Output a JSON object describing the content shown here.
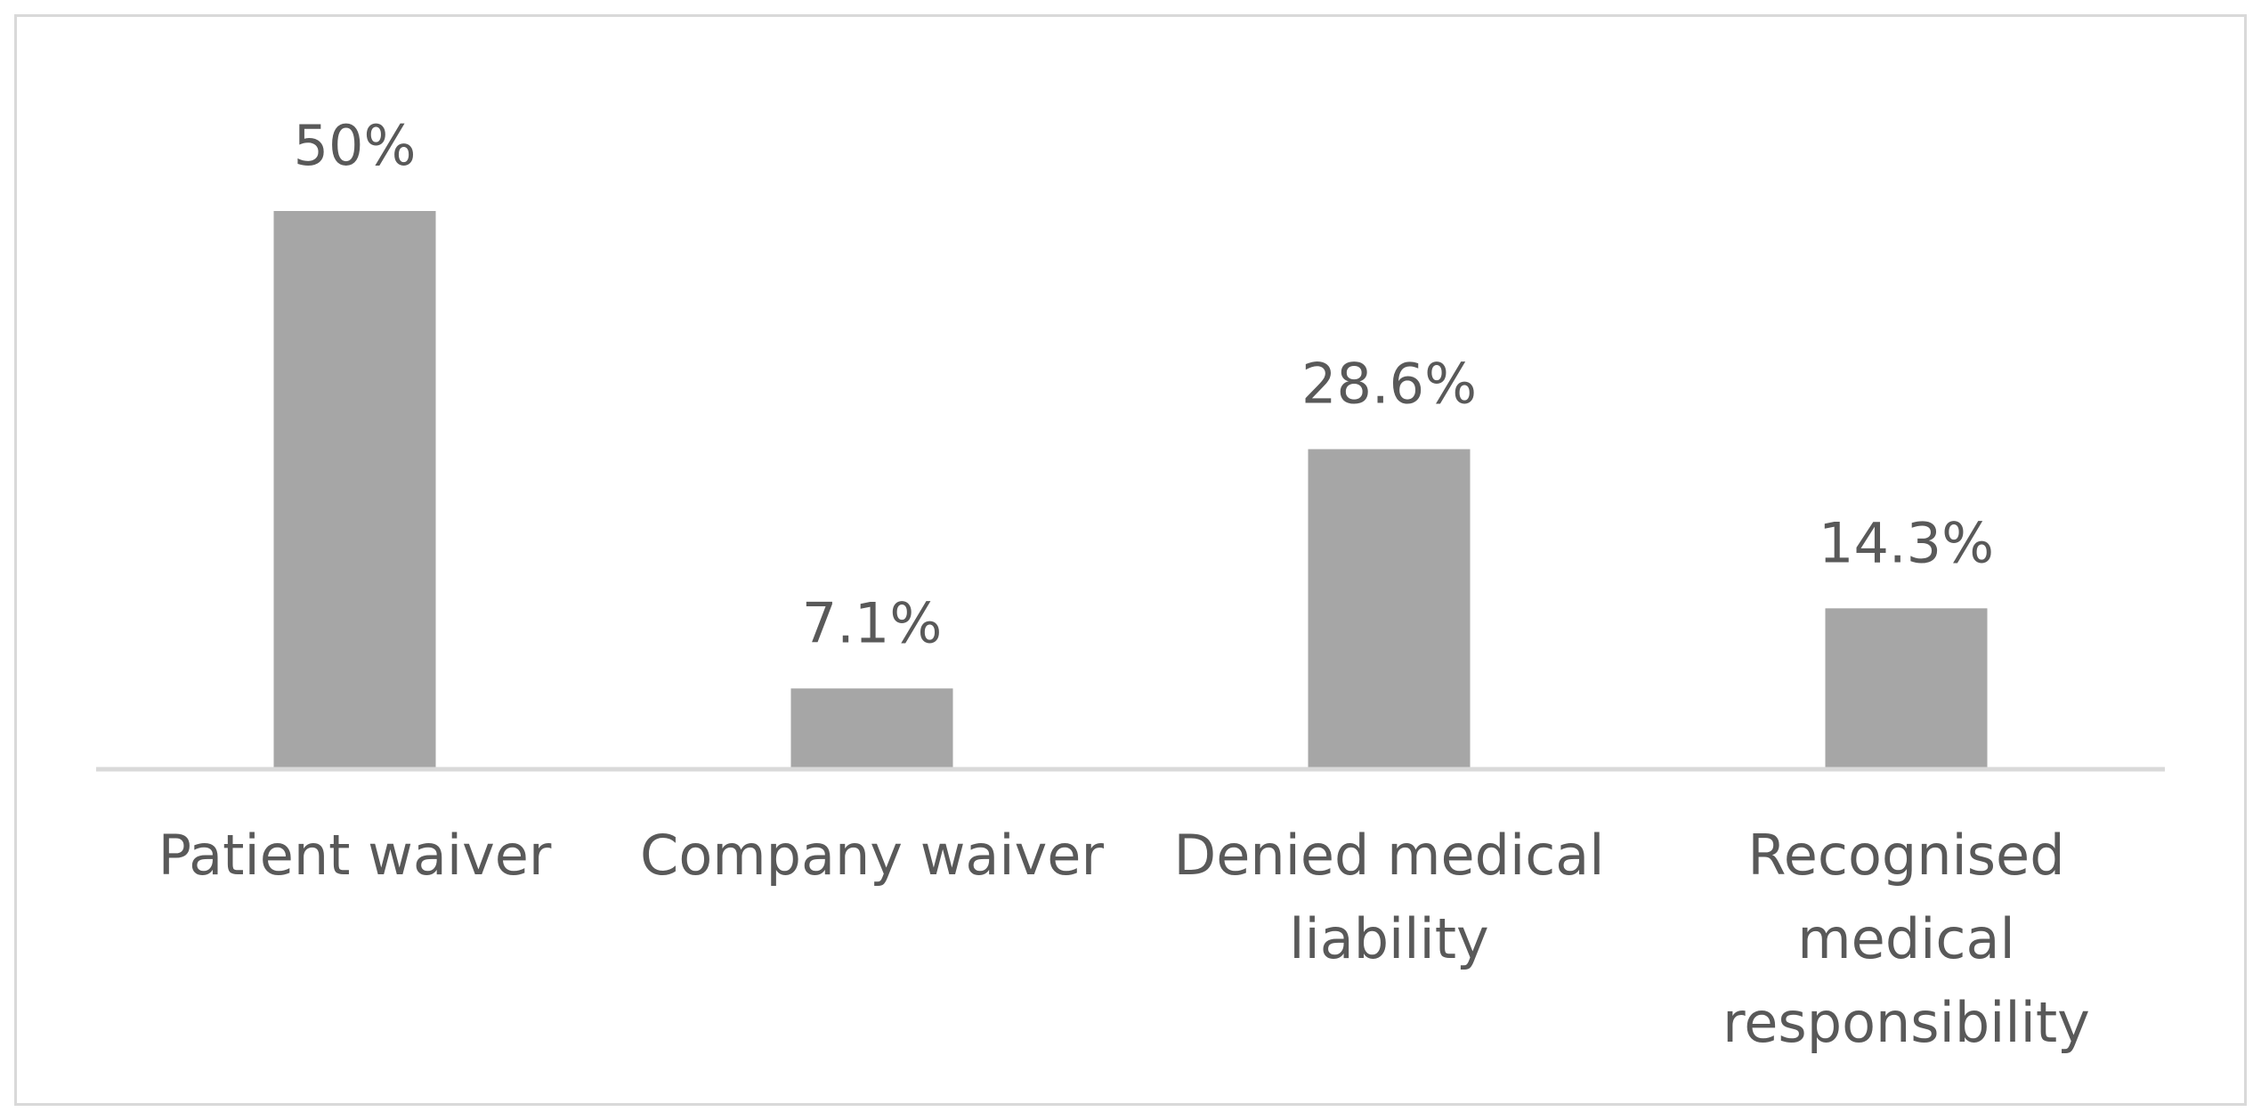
{
  "chart_data": {
    "type": "bar",
    "title": "",
    "xlabel": "",
    "ylabel": "",
    "categories": [
      [
        "Patient waiver"
      ],
      [
        "Company waiver"
      ],
      [
        "Denied medical",
        "liability"
      ],
      [
        "Recognised",
        "medical",
        "responsibility"
      ]
    ],
    "values": [
      50,
      7.1,
      28.6,
      14.3
    ],
    "value_labels": [
      "50%",
      "7.1%",
      "28.6%",
      "14.3%"
    ],
    "ylim": [
      0,
      50
    ],
    "grid": false,
    "legend": "none",
    "colors": {
      "bar": "#a6a6a6",
      "axis": "#d9d9d9",
      "text": "#595959",
      "frame": "#d9d9d9"
    }
  }
}
